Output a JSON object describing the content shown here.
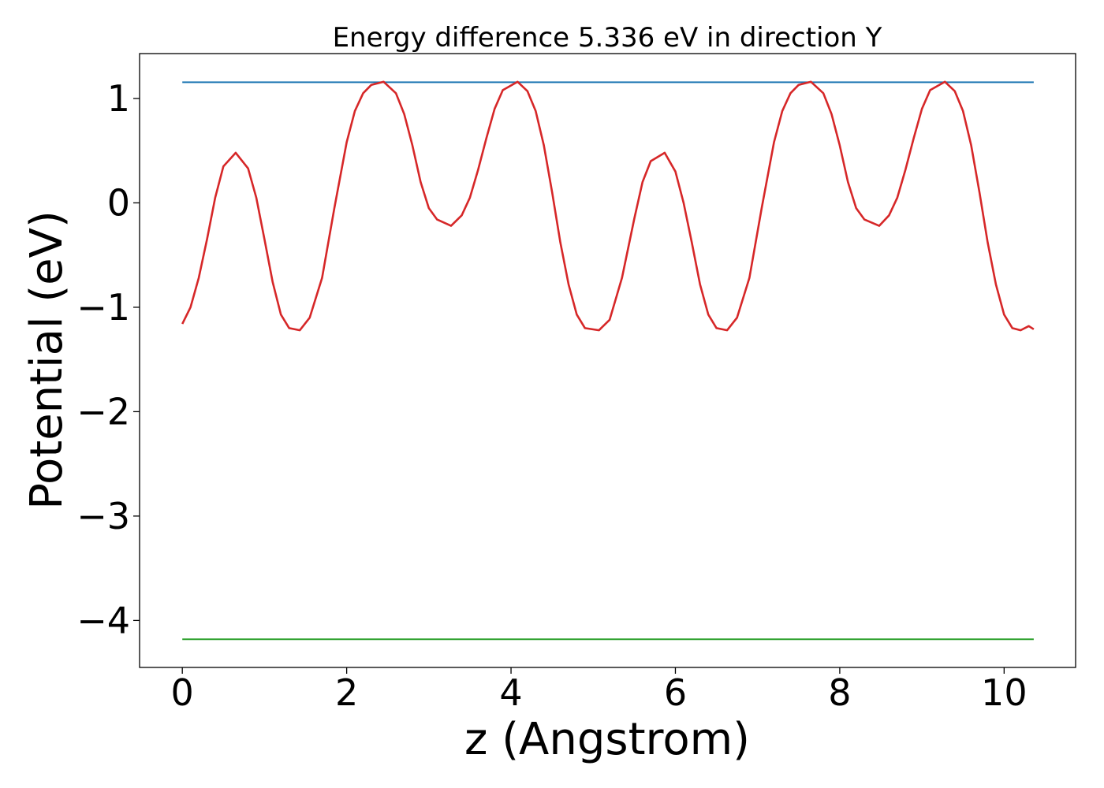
{
  "chart_data": {
    "type": "line",
    "title": "Energy difference 5.336 eV in direction Y",
    "xlabel": "z (Angstrom)",
    "ylabel": "Potential (eV)",
    "xlim": [
      -0.52,
      10.87
    ],
    "ylim": [
      -4.45,
      1.43
    ],
    "xticks": [
      {
        "value": 0,
        "label": "0"
      },
      {
        "value": 2,
        "label": "2"
      },
      {
        "value": 4,
        "label": "4"
      },
      {
        "value": 6,
        "label": "6"
      },
      {
        "value": 8,
        "label": "8"
      },
      {
        "value": 10,
        "label": "10"
      }
    ],
    "yticks": [
      {
        "value": 1,
        "label": "1"
      },
      {
        "value": 0,
        "label": "0"
      },
      {
        "value": -1,
        "label": "−1"
      },
      {
        "value": -2,
        "label": "−2"
      },
      {
        "value": -3,
        "label": "−3"
      },
      {
        "value": -4,
        "label": "−4"
      }
    ],
    "grid": false,
    "legend": "none",
    "series": [
      {
        "color": "#1f77b4",
        "x": [
          0,
          10.36
        ],
        "y": [
          1.155,
          1.155
        ]
      },
      {
        "color": "#2ca02c",
        "x": [
          0,
          10.36
        ],
        "y": [
          -4.18,
          -4.18
        ]
      },
      {
        "color": "#d62728",
        "x": [
          0,
          0.1,
          0.2,
          0.3,
          0.4,
          0.5,
          0.65,
          0.8,
          0.9,
          1.0,
          1.1,
          1.2,
          1.3,
          1.43,
          1.55,
          1.7,
          1.85,
          2.0,
          2.1,
          2.2,
          2.3,
          2.45,
          2.6,
          2.7,
          2.8,
          2.9,
          3.0,
          3.1,
          3.27,
          3.4,
          3.5,
          3.6,
          3.7,
          3.8,
          3.9,
          4.08,
          4.2,
          4.3,
          4.4,
          4.5,
          4.6,
          4.7,
          4.8,
          4.9,
          5.07,
          5.2,
          5.35,
          5.5,
          5.6,
          5.7,
          5.87,
          6.0,
          6.1,
          6.2,
          6.3,
          6.4,
          6.5,
          6.63,
          6.75,
          6.9,
          7.05,
          7.2,
          7.3,
          7.4,
          7.5,
          7.65,
          7.8,
          7.9,
          8.0,
          8.1,
          8.2,
          8.3,
          8.48,
          8.6,
          8.7,
          8.8,
          8.9,
          9.0,
          9.1,
          9.28,
          9.4,
          9.5,
          9.6,
          9.7,
          9.8,
          9.9,
          10.0,
          10.1,
          10.2,
          10.3,
          10.36
        ],
        "y": [
          -1.16,
          -1.0,
          -0.72,
          -0.35,
          0.05,
          0.35,
          0.48,
          0.33,
          0.05,
          -0.35,
          -0.76,
          -1.07,
          -1.2,
          -1.22,
          -1.1,
          -0.72,
          -0.05,
          0.58,
          0.88,
          1.05,
          1.13,
          1.16,
          1.05,
          0.85,
          0.55,
          0.2,
          -0.05,
          -0.16,
          -0.22,
          -0.12,
          0.05,
          0.32,
          0.62,
          0.9,
          1.08,
          1.16,
          1.07,
          0.88,
          0.55,
          0.1,
          -0.38,
          -0.78,
          -1.07,
          -1.2,
          -1.22,
          -1.12,
          -0.72,
          -0.15,
          0.2,
          0.4,
          0.48,
          0.3,
          0.0,
          -0.38,
          -0.78,
          -1.07,
          -1.2,
          -1.22,
          -1.1,
          -0.72,
          -0.05,
          0.58,
          0.88,
          1.05,
          1.13,
          1.16,
          1.05,
          0.85,
          0.55,
          0.2,
          -0.05,
          -0.16,
          -0.22,
          -0.12,
          0.05,
          0.32,
          0.62,
          0.9,
          1.08,
          1.16,
          1.07,
          0.88,
          0.55,
          0.1,
          -0.38,
          -0.78,
          -1.07,
          -1.2,
          -1.22,
          -1.18,
          -1.21
        ]
      }
    ]
  }
}
